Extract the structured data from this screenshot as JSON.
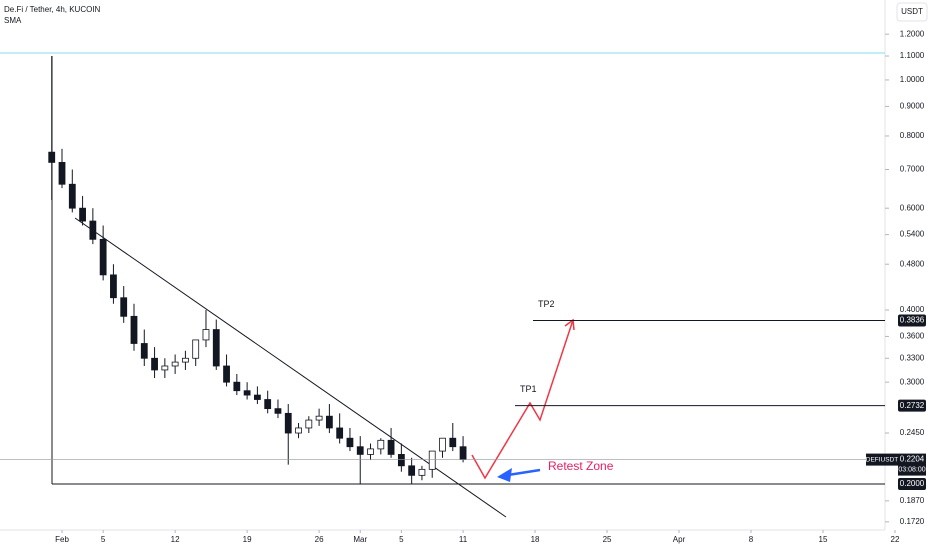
{
  "chart_data": {
    "type": "candlestick",
    "title": "De.Fi / Tether, 4h, KUCOIN",
    "indicator": "SMA",
    "currency_button": "USDT",
    "log_scale": true,
    "up_color": "#ffffff",
    "down_color": "#131722",
    "x": [
      -1,
      0,
      1,
      2,
      3,
      4,
      5,
      6,
      7,
      8,
      9,
      10,
      11,
      12,
      13,
      14,
      15,
      16,
      17,
      18,
      19,
      20,
      21,
      22,
      23,
      24,
      25,
      26,
      27,
      28,
      29,
      30,
      31,
      32,
      33,
      34,
      35,
      36,
      37,
      38,
      39
    ],
    "open": [
      0.75,
      0.72,
      0.66,
      0.6,
      0.57,
      0.53,
      0.46,
      0.42,
      0.39,
      0.35,
      0.33,
      0.315,
      0.32,
      0.325,
      0.33,
      0.355,
      0.37,
      0.32,
      0.3,
      0.29,
      0.285,
      0.28,
      0.27,
      0.265,
      0.245,
      0.25,
      0.258,
      0.262,
      0.25,
      0.24,
      0.232,
      0.225,
      0.23,
      0.238,
      0.225,
      0.215,
      0.207,
      0.212,
      0.228,
      0.24,
      0.232
    ],
    "high": [
      1.1,
      0.76,
      0.7,
      0.63,
      0.6,
      0.56,
      0.48,
      0.44,
      0.41,
      0.37,
      0.345,
      0.33,
      0.335,
      0.34,
      0.35,
      0.4,
      0.385,
      0.335,
      0.31,
      0.3,
      0.295,
      0.29,
      0.28,
      0.275,
      0.255,
      0.262,
      0.27,
      0.275,
      0.265,
      0.25,
      0.242,
      0.235,
      0.24,
      0.25,
      0.235,
      0.222,
      0.215,
      0.225,
      0.24,
      0.255,
      0.242
    ],
    "low": [
      0.62,
      0.65,
      0.59,
      0.56,
      0.52,
      0.45,
      0.41,
      0.38,
      0.34,
      0.32,
      0.305,
      0.305,
      0.31,
      0.315,
      0.32,
      0.345,
      0.315,
      0.295,
      0.285,
      0.28,
      0.275,
      0.265,
      0.26,
      0.216,
      0.24,
      0.245,
      0.252,
      0.245,
      0.235,
      0.228,
      0.2,
      0.22,
      0.225,
      0.222,
      0.21,
      0.2,
      0.203,
      0.205,
      0.222,
      0.228,
      0.218
    ],
    "close": [
      0.72,
      0.66,
      0.6,
      0.57,
      0.53,
      0.46,
      0.42,
      0.39,
      0.35,
      0.33,
      0.315,
      0.32,
      0.325,
      0.33,
      0.355,
      0.37,
      0.32,
      0.3,
      0.29,
      0.285,
      0.28,
      0.27,
      0.265,
      0.245,
      0.25,
      0.258,
      0.262,
      0.25,
      0.24,
      0.232,
      0.225,
      0.23,
      0.238,
      0.225,
      0.215,
      0.207,
      0.212,
      0.228,
      0.24,
      0.232,
      0.2204
    ],
    "xlim": [
      -6.03,
      84.6
    ],
    "ylim": [
      0.1665,
      1.375
    ],
    "xticks": [
      {
        "value": 0,
        "label": "Feb"
      },
      {
        "value": 4,
        "label": "5"
      },
      {
        "value": 11,
        "label": "12"
      },
      {
        "value": 18,
        "label": "19"
      },
      {
        "value": 25,
        "label": "26"
      },
      {
        "value": 29,
        "label": "Mar"
      },
      {
        "value": 33,
        "label": "5"
      },
      {
        "value": 39,
        "label": "11"
      },
      {
        "value": 46,
        "label": "18"
      },
      {
        "value": 53,
        "label": "25"
      },
      {
        "value": 60,
        "label": "Apr"
      },
      {
        "value": 67,
        "label": "8"
      },
      {
        "value": 74,
        "label": "15"
      },
      {
        "value": 81,
        "label": "22"
      }
    ],
    "yticks": [
      {
        "value": 0.172,
        "label": "0.1720"
      },
      {
        "value": 0.187,
        "label": "0.1870"
      },
      {
        "value": 0.245,
        "label": "0.2450"
      },
      {
        "value": 0.3,
        "label": "0.3000"
      },
      {
        "value": 0.33,
        "label": "0.3300"
      },
      {
        "value": 0.36,
        "label": "0.3600"
      },
      {
        "value": 0.4,
        "label": "0.4000"
      },
      {
        "value": 0.48,
        "label": "0.4800"
      },
      {
        "value": 0.54,
        "label": "0.5400"
      },
      {
        "value": 0.6,
        "label": "0.6000"
      },
      {
        "value": 0.7,
        "label": "0.7000"
      },
      {
        "value": 0.8,
        "label": "0.8000"
      },
      {
        "value": 0.9,
        "label": "0.9000"
      },
      {
        "value": 1.0,
        "label": "1.0000"
      },
      {
        "value": 1.1,
        "label": "1.1000"
      },
      {
        "value": 1.2,
        "label": "1.2000"
      }
    ],
    "levels": [
      {
        "name": "TP2",
        "value": 0.3836,
        "label": "0.3836"
      },
      {
        "name": "TP1",
        "value": 0.2732,
        "label": "0.2732"
      },
      {
        "value": 0.2,
        "label": "0.2000"
      }
    ],
    "last_price": {
      "symbol": "DEFIUSDT",
      "value": 0.2204,
      "label": "0.2204",
      "countdown": "03:08:00"
    },
    "annotation": "Retest Zone"
  }
}
